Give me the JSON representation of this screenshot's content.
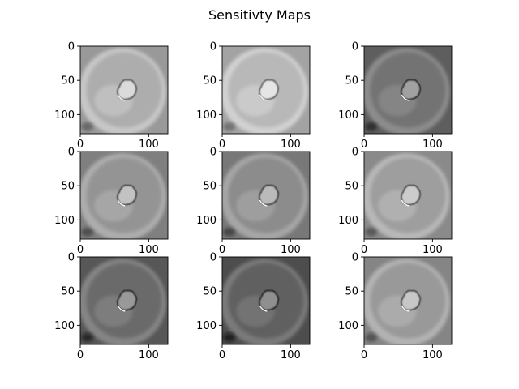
{
  "figure": {
    "title": "Sensitivty Maps"
  },
  "chart_data": {
    "type": "heatmap",
    "title": "Sensitivty Maps",
    "layout": {
      "rows": 3,
      "cols": 3
    },
    "colormap": "gray",
    "image_size": [
      128,
      128
    ],
    "xlim": [
      0,
      128
    ],
    "ylim": [
      128,
      0
    ],
    "x_ticks": [
      0,
      100
    ],
    "y_ticks": [
      0,
      50,
      100
    ],
    "panels": [
      {
        "row": 0,
        "col": 0,
        "tone": 0.68
      },
      {
        "row": 0,
        "col": 1,
        "tone": 0.72
      },
      {
        "row": 0,
        "col": 2,
        "tone": 0.45
      },
      {
        "row": 1,
        "col": 0,
        "tone": 0.58
      },
      {
        "row": 1,
        "col": 1,
        "tone": 0.55
      },
      {
        "row": 1,
        "col": 2,
        "tone": 0.62
      },
      {
        "row": 2,
        "col": 0,
        "tone": 0.42
      },
      {
        "row": 2,
        "col": 1,
        "tone": 0.38
      },
      {
        "row": 2,
        "col": 2,
        "tone": 0.6
      }
    ]
  }
}
